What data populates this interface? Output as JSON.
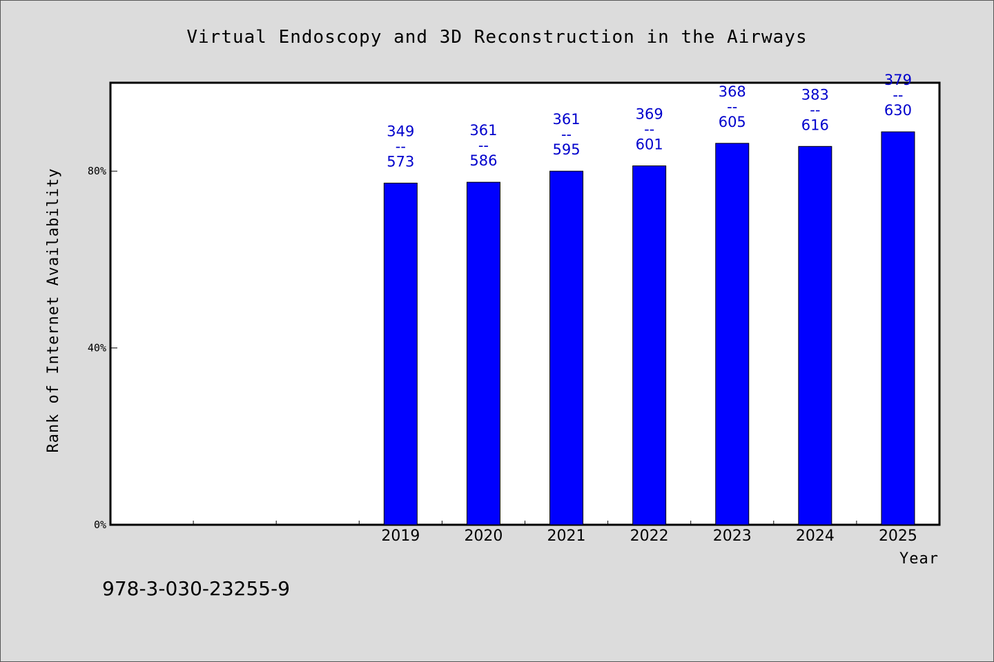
{
  "chart_data": {
    "type": "bar",
    "title": "Virtual Endoscopy and 3D Reconstruction in the Airways",
    "xlabel": "Year",
    "ylabel": "Rank of Internet Availability",
    "ylim": [
      0,
      100
    ],
    "yticks": [
      {
        "value": 0,
        "label": "0%"
      },
      {
        "value": 40,
        "label": "40%"
      },
      {
        "value": 80,
        "label": "80%"
      }
    ],
    "x_slots": 10,
    "categories": [
      "2019",
      "2020",
      "2021",
      "2022",
      "2023",
      "2024",
      "2025"
    ],
    "first_category_slot": 3,
    "values": [
      77.3,
      77.5,
      80.0,
      81.2,
      86.3,
      85.6,
      88.9
    ],
    "data_labels": [
      [
        "349",
        "--",
        "573"
      ],
      [
        "361",
        "--",
        "586"
      ],
      [
        "361",
        "--",
        "595"
      ],
      [
        "369",
        "--",
        "601"
      ],
      [
        "368",
        "--",
        "605"
      ],
      [
        "383",
        "--",
        "616"
      ],
      [
        "379",
        "--",
        "630"
      ]
    ],
    "bar_color": "#0000ff",
    "label_color": "#0000cc",
    "grid": false,
    "legend": "none"
  },
  "footnote": "978-3-030-23255-9"
}
